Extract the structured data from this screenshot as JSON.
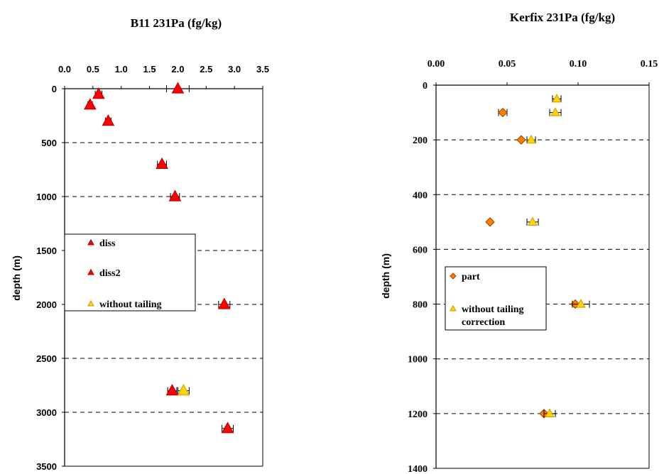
{
  "chart_data": [
    {
      "type": "scatter",
      "title": "B11 231Pa (fg/kg)",
      "ylabel": "depth (m)",
      "xlabel": "",
      "xlim": [
        0,
        3.5
      ],
      "ylim": [
        0,
        3500
      ],
      "y_inverted": true,
      "x_axis_position": "top",
      "x_ticks": [
        "0.0",
        "0.5",
        "1.0",
        "1.5",
        "2.0",
        "2.5",
        "3.0",
        "3.5"
      ],
      "y_ticks": [
        "0",
        "500",
        "1000",
        "1500",
        "2000",
        "2500",
        "3000",
        "3500"
      ],
      "grid": "horizontal dashed",
      "legend_placement": "middle-left",
      "series": [
        {
          "name": "diss",
          "marker": "triangle",
          "color": "#ff0000",
          "points": [
            {
              "x": 2.0,
              "y": 0,
              "err": 0.2
            },
            {
              "x": 0.6,
              "y": 50,
              "err": 0.06
            },
            {
              "x": 0.45,
              "y": 150,
              "err": 0.04
            },
            {
              "x": 0.77,
              "y": 300,
              "err": 0.05
            },
            {
              "x": 1.72,
              "y": 700,
              "err": 0.08
            },
            {
              "x": 1.95,
              "y": 1000,
              "err": 0.08
            },
            {
              "x": 2.82,
              "y": 2000,
              "err": 0.1
            },
            {
              "x": 1.9,
              "y": 2800,
              "err": 0.08
            },
            {
              "x": 2.88,
              "y": 3150,
              "err": 0.1
            }
          ]
        },
        {
          "name": "diss2",
          "marker": "triangle-small",
          "color": "#ff0000",
          "points": []
        },
        {
          "name": "without tailing",
          "marker": "triangle",
          "color": "#ffd700",
          "points": [
            {
              "x": 2.1,
              "y": 2800,
              "err": 0.1
            }
          ]
        }
      ]
    },
    {
      "type": "scatter",
      "title": "Kerfix 231Pa (fg/kg)",
      "ylabel": "depth (m)",
      "xlabel": "",
      "xlim": [
        0,
        0.15
      ],
      "ylim": [
        0,
        1400
      ],
      "y_inverted": true,
      "x_axis_position": "top",
      "x_ticks": [
        "0.00",
        "0.05",
        "0.10",
        "0.15"
      ],
      "y_ticks": [
        "0",
        "200",
        "400",
        "600",
        "800",
        "1000",
        "1200",
        "1400"
      ],
      "grid": "horizontal dashed",
      "legend_placement": "middle-left",
      "series": [
        {
          "name": "part",
          "marker": "diamond",
          "color": "#ff7f00",
          "points": [
            {
              "x": 0.047,
              "y": 100,
              "err": 0.003
            },
            {
              "x": 0.06,
              "y": 200,
              "err": 0.0
            },
            {
              "x": 0.038,
              "y": 500,
              "err": 0.0
            },
            {
              "x": 0.098,
              "y": 800,
              "err": 0.0
            },
            {
              "x": 0.076,
              "y": 1200,
              "err": 0.0
            }
          ]
        },
        {
          "name": "without tailing\ncorrection",
          "marker": "triangle",
          "color": "#ffd700",
          "points": [
            {
              "x": 0.085,
              "y": 50,
              "err": 0.003
            },
            {
              "x": 0.084,
              "y": 100,
              "err": 0.004
            },
            {
              "x": 0.067,
              "y": 200,
              "err": 0.003
            },
            {
              "x": 0.068,
              "y": 500,
              "err": 0.004
            },
            {
              "x": 0.102,
              "y": 800,
              "err": 0.006
            },
            {
              "x": 0.08,
              "y": 1200,
              "err": 0.004
            }
          ]
        }
      ]
    }
  ]
}
